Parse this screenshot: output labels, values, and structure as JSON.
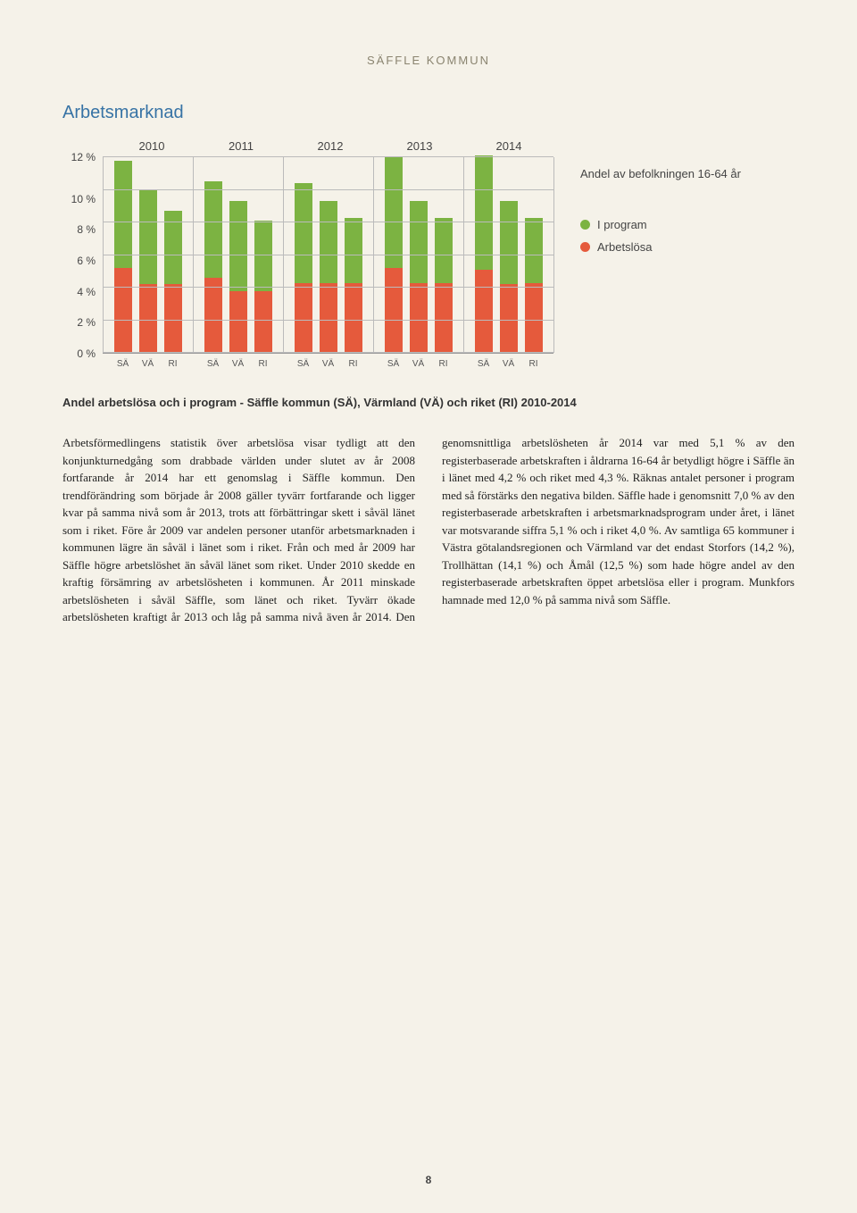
{
  "header": "SÄFFLE KOMMUN",
  "section_title": "Arbetsmarknad",
  "chart": {
    "type": "stacked-bar",
    "years": [
      "2010",
      "2011",
      "2012",
      "2013",
      "2014"
    ],
    "region_labels": [
      "SÄ",
      "VÄ",
      "RI"
    ],
    "y_ticks": [
      "12 %",
      "10 %",
      "8 %",
      "6 %",
      "4 %",
      "2 %",
      "0 %"
    ],
    "y_max": 12,
    "colors": {
      "program": "#7cb342",
      "arbetslosa": "#e55a3c",
      "grid": "#bbbbbb",
      "axis": "#999999",
      "bg": "#f5f2e9"
    },
    "legend_title": "Andel av befolkningen 16-64 år",
    "legend": [
      {
        "label": "I program",
        "color": "#7cb342"
      },
      {
        "label": "Arbetslösa",
        "color": "#e55a3c"
      }
    ],
    "data": [
      {
        "year": "2010",
        "bars": [
          {
            "orange": 5.2,
            "green": 6.6
          },
          {
            "orange": 4.2,
            "green": 5.8
          },
          {
            "orange": 4.2,
            "green": 4.5
          }
        ]
      },
      {
        "year": "2011",
        "bars": [
          {
            "orange": 4.6,
            "green": 5.9
          },
          {
            "orange": 3.8,
            "green": 5.5
          },
          {
            "orange": 3.8,
            "green": 4.3
          }
        ]
      },
      {
        "year": "2012",
        "bars": [
          {
            "orange": 4.3,
            "green": 6.1
          },
          {
            "orange": 4.3,
            "green": 5.0
          },
          {
            "orange": 4.3,
            "green": 4.0
          }
        ]
      },
      {
        "year": "2013",
        "bars": [
          {
            "orange": 5.2,
            "green": 6.8
          },
          {
            "orange": 4.3,
            "green": 5.0
          },
          {
            "orange": 4.3,
            "green": 4.0
          }
        ]
      },
      {
        "year": "2014",
        "bars": [
          {
            "orange": 5.1,
            "green": 7.0
          },
          {
            "orange": 4.2,
            "green": 5.1
          },
          {
            "orange": 4.3,
            "green": 4.0
          }
        ]
      }
    ]
  },
  "caption": "Andel arbetslösa och i program - Säffle kommun (SÄ), Värmland (VÄ) och riket (RI) 2010-2014",
  "body_text": "Arbetsförmedlingens statistik över arbetslösa visar tydligt att den konjunkturnedgång som drabbade världen under slutet av år 2008 fortfarande år 2014 har ett genomslag i Säffle kommun. Den trendförändring som började år 2008 gäller tyvärr fortfarande och ligger kvar på samma nivå som år 2013, trots att förbättringar skett i såväl länet som i riket. Före år 2009 var andelen personer utanför arbetsmarknaden i kommunen lägre än såväl i länet som i riket. Från och med år 2009 har Säffle högre arbetslöshet än såväl länet som riket. Under 2010 skedde en kraftig försämring av arbetslösheten i kommunen. År 2011 minskade arbetslösheten i såväl Säffle, som länet och riket. Tyvärr ökade arbetslösheten kraftigt år 2013 och låg på samma nivå även år 2014. Den genomsnittliga arbetslösheten år 2014 var med 5,1 % av den registerbaserade arbetskraften i åldrarna 16-64 år betydligt högre i Säffle än i länet med 4,2 % och riket med 4,3 %. Räknas antalet personer i program med så förstärks den negativa bilden. Säffle hade i genomsnitt 7,0 % av den registerbaserade arbetskraften i arbetsmarknadsprogram under året, i länet var motsvarande siffra 5,1 % och i riket 4,0 %. Av samtliga 65 kommuner i Västra götalandsregionen och Värmland var det endast Storfors (14,2 %), Trollhättan (14,1 %) och Åmål (12,5 %) som hade högre andel av den registerbaserade arbetskraften öppet arbetslösa eller i program. Munkfors hamnade med 12,0 % på samma nivå som Säffle.",
  "page_number": "8"
}
